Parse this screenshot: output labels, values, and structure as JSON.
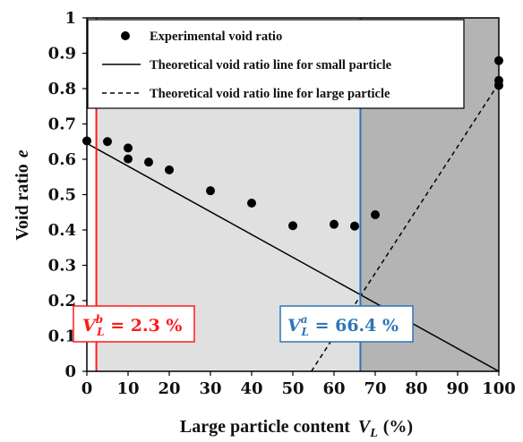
{
  "chart_data": {
    "type": "scatter",
    "xlabel": "Large particle content",
    "xlabel_symbol": "V",
    "xlabel_subscript": "L",
    "xlabel_unit": "(%)",
    "ylabel": "Void ratio",
    "ylabel_symbol": "e",
    "xlim": [
      0,
      100
    ],
    "ylim": [
      0,
      1
    ],
    "x_ticks": [
      "0",
      "10",
      "20",
      "30",
      "40",
      "50",
      "60",
      "70",
      "80",
      "90",
      "100"
    ],
    "y_ticks": [
      "0",
      "0.1",
      "0.2",
      "0.3",
      "0.4",
      "0.5",
      "0.6",
      "0.7",
      "0.8",
      "0.9",
      "1"
    ],
    "grid": false,
    "legend_position": "top-right",
    "regions": [
      {
        "from": 2.3,
        "to": 66.4,
        "color": "#e0e0e0"
      },
      {
        "from": 66.4,
        "to": 100,
        "color": "#b4b4b4"
      }
    ],
    "vlines": [
      {
        "x": 2.3,
        "color": "#ff1a1a"
      },
      {
        "x": 66.4,
        "color": "#2e75b6"
      }
    ],
    "series": [
      {
        "name": "Experimental void ratio",
        "style": "markers",
        "color": "#000000",
        "points": [
          {
            "x": 0,
            "y": 0.652
          },
          {
            "x": 5,
            "y": 0.65
          },
          {
            "x": 10,
            "y": 0.632
          },
          {
            "x": 10,
            "y": 0.601
          },
          {
            "x": 15,
            "y": 0.592
          },
          {
            "x": 20,
            "y": 0.57
          },
          {
            "x": 30,
            "y": 0.511
          },
          {
            "x": 40,
            "y": 0.476
          },
          {
            "x": 50,
            "y": 0.412
          },
          {
            "x": 60,
            "y": 0.416
          },
          {
            "x": 65,
            "y": 0.411
          },
          {
            "x": 70,
            "y": 0.443
          },
          {
            "x": 100,
            "y": 0.879
          },
          {
            "x": 100,
            "y": 0.823
          },
          {
            "x": 100,
            "y": 0.809
          }
        ]
      },
      {
        "name": "Theoretical void ratio line for small particle",
        "style": "solid",
        "color": "#000000",
        "points": [
          {
            "x": 0,
            "y": 0.645
          },
          {
            "x": 100,
            "y": 0
          }
        ]
      },
      {
        "name": "Theoretical void ratio line for large particle",
        "style": "dashed",
        "color": "#000000",
        "points": [
          {
            "x": 54.5,
            "y": 0
          },
          {
            "x": 100,
            "y": 0.815
          }
        ]
      }
    ],
    "annotations": [
      {
        "symbol": "V",
        "superscript": "b",
        "subscript": "L",
        "value_text": " = 2.3 %",
        "color": "#ff1a1a",
        "x": 2.3
      },
      {
        "symbol": "V",
        "superscript": "a",
        "subscript": "L",
        "value_text": " = 66.4 %",
        "color": "#2e75b6",
        "x": 66.4
      }
    ]
  }
}
